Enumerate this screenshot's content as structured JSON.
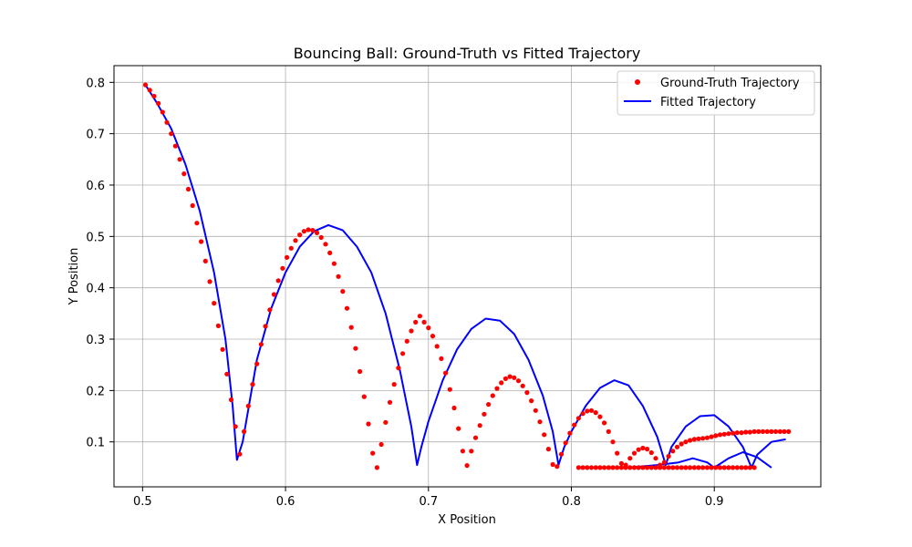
{
  "chart_data": {
    "type": "scatter",
    "title": "Bouncing Ball: Ground-Truth vs Fitted Trajectory",
    "xlabel": "X Position",
    "ylabel": "Y Position",
    "xlim": [
      0.48,
      0.9745
    ],
    "ylim": [
      0.0125,
      0.8325
    ],
    "xticks": [
      0.5,
      0.6,
      0.7,
      0.8,
      0.9
    ],
    "yticks": [
      0.1,
      0.2,
      0.3,
      0.4,
      0.5,
      0.6,
      0.7,
      0.8
    ],
    "xtick_labels": [
      "0.5",
      "0.6",
      "0.7",
      "0.8",
      "0.9"
    ],
    "ytick_labels": [
      "0.1",
      "0.2",
      "0.3",
      "0.4",
      "0.5",
      "0.6",
      "0.7",
      "0.8"
    ],
    "grid": true,
    "legend_position": "top-right",
    "series": [
      {
        "name": "Ground-Truth Trajectory",
        "kind": "scatter",
        "color": "#ff0000",
        "x": [
          0.502,
          0.505,
          0.508,
          0.511,
          0.514,
          0.517,
          0.52,
          0.523,
          0.526,
          0.529,
          0.532,
          0.535,
          0.538,
          0.541,
          0.544,
          0.547,
          0.55,
          0.553,
          0.556,
          0.559,
          0.562,
          0.565,
          0.568,
          0.571,
          0.574,
          0.577,
          0.58,
          0.583,
          0.586,
          0.589,
          0.592,
          0.595,
          0.598,
          0.601,
          0.604,
          0.607,
          0.61,
          0.613,
          0.616,
          0.619,
          0.622,
          0.625,
          0.628,
          0.631,
          0.634,
          0.637,
          0.64,
          0.643,
          0.646,
          0.649,
          0.652,
          0.655,
          0.658,
          0.661,
          0.664,
          0.667,
          0.67,
          0.673,
          0.676,
          0.679,
          0.682,
          0.685,
          0.688,
          0.691,
          0.694,
          0.697,
          0.7,
          0.703,
          0.706,
          0.709,
          0.712,
          0.715,
          0.718,
          0.721,
          0.724,
          0.727,
          0.73,
          0.733,
          0.736,
          0.739,
          0.742,
          0.745,
          0.748,
          0.751,
          0.754,
          0.757,
          0.76,
          0.763,
          0.766,
          0.769,
          0.772,
          0.775,
          0.778,
          0.781,
          0.784,
          0.787,
          0.79,
          0.793,
          0.796,
          0.799,
          0.802,
          0.805,
          0.808,
          0.811,
          0.814,
          0.817,
          0.82,
          0.823,
          0.826,
          0.829,
          0.832,
          0.835,
          0.838,
          0.841,
          0.844,
          0.847,
          0.85,
          0.853,
          0.856,
          0.859,
          0.862,
          0.865,
          0.868,
          0.871,
          0.874,
          0.877,
          0.88,
          0.883,
          0.886,
          0.889,
          0.892,
          0.895,
          0.898,
          0.901,
          0.904,
          0.907,
          0.91,
          0.913,
          0.916,
          0.919,
          0.922,
          0.925,
          0.928,
          0.931,
          0.934,
          0.937,
          0.94,
          0.943,
          0.946,
          0.949,
          0.952,
          0.805,
          0.808,
          0.811,
          0.814,
          0.817,
          0.82,
          0.823,
          0.826,
          0.829,
          0.832,
          0.835,
          0.838,
          0.841,
          0.844,
          0.847,
          0.85,
          0.853,
          0.856,
          0.859,
          0.862,
          0.865,
          0.868,
          0.871,
          0.874,
          0.877,
          0.88,
          0.883,
          0.886,
          0.889,
          0.892,
          0.895,
          0.898,
          0.901,
          0.904,
          0.907,
          0.91,
          0.913,
          0.916,
          0.919,
          0.922,
          0.925,
          0.928
        ],
        "y": [
          0.795,
          0.785,
          0.773,
          0.759,
          0.742,
          0.722,
          0.7,
          0.676,
          0.65,
          0.622,
          0.592,
          0.56,
          0.526,
          0.49,
          0.452,
          0.412,
          0.37,
          0.326,
          0.28,
          0.232,
          0.182,
          0.13,
          0.076,
          0.12,
          0.17,
          0.212,
          0.252,
          0.29,
          0.325,
          0.357,
          0.387,
          0.414,
          0.438,
          0.459,
          0.477,
          0.492,
          0.503,
          0.51,
          0.513,
          0.512,
          0.507,
          0.498,
          0.485,
          0.468,
          0.447,
          0.422,
          0.393,
          0.36,
          0.323,
          0.282,
          0.237,
          0.188,
          0.135,
          0.078,
          0.05,
          0.095,
          0.138,
          0.177,
          0.212,
          0.244,
          0.272,
          0.296,
          0.316,
          0.333,
          0.345,
          0.333,
          0.322,
          0.306,
          0.286,
          0.262,
          0.234,
          0.202,
          0.166,
          0.126,
          0.082,
          0.054,
          0.082,
          0.108,
          0.132,
          0.154,
          0.173,
          0.19,
          0.204,
          0.215,
          0.223,
          0.227,
          0.225,
          0.219,
          0.209,
          0.196,
          0.18,
          0.161,
          0.139,
          0.114,
          0.086,
          0.056,
          0.052,
          0.076,
          0.098,
          0.117,
          0.133,
          0.146,
          0.155,
          0.16,
          0.161,
          0.157,
          0.149,
          0.137,
          0.12,
          0.1,
          0.078,
          0.058,
          0.055,
          0.068,
          0.078,
          0.085,
          0.088,
          0.086,
          0.079,
          0.068,
          0.055,
          0.06,
          0.072,
          0.082,
          0.09,
          0.096,
          0.1,
          0.103,
          0.105,
          0.106,
          0.107,
          0.108,
          0.11,
          0.112,
          0.114,
          0.115,
          0.116,
          0.117,
          0.118,
          0.118,
          0.119,
          0.119,
          0.12,
          0.12,
          0.12,
          0.12,
          0.12,
          0.12,
          0.12,
          0.12,
          0.12,
          0.05,
          0.05,
          0.05,
          0.05,
          0.05,
          0.05,
          0.05,
          0.05,
          0.05,
          0.05,
          0.05,
          0.05,
          0.05,
          0.05,
          0.05,
          0.05,
          0.05,
          0.05,
          0.05,
          0.05,
          0.05,
          0.05,
          0.05,
          0.05,
          0.05,
          0.05,
          0.05,
          0.05,
          0.05,
          0.05,
          0.05,
          0.05,
          0.05,
          0.05,
          0.05,
          0.05,
          0.05,
          0.05,
          0.05,
          0.05,
          0.05,
          0.05
        ]
      },
      {
        "name": "Fitted Trajectory",
        "kind": "line",
        "color": "#0000ff",
        "segments": [
          {
            "x": [
              0.502,
              0.51,
              0.52,
              0.53,
              0.54,
              0.55,
              0.558,
              0.563,
              0.566,
              0.57,
              0.575,
              0.58,
              0.59,
              0.6,
              0.61,
              0.62,
              0.63,
              0.64,
              0.65,
              0.66,
              0.67,
              0.68,
              0.688,
              0.692,
              0.695,
              0.7,
              0.71,
              0.72,
              0.73,
              0.74,
              0.75,
              0.76,
              0.77,
              0.78,
              0.787,
              0.791,
              0.795,
              0.8,
              0.81,
              0.82,
              0.83,
              0.84,
              0.85,
              0.86,
              0.866,
              0.87,
              0.88,
              0.89,
              0.9,
              0.91,
              0.92,
              0.926,
              0.93,
              0.94,
              0.95
            ],
            "y": [
              0.795,
              0.76,
              0.71,
              0.64,
              0.55,
              0.43,
              0.3,
              0.17,
              0.065,
              0.1,
              0.18,
              0.26,
              0.36,
              0.43,
              0.48,
              0.51,
              0.522,
              0.512,
              0.48,
              0.43,
              0.35,
              0.24,
              0.13,
              0.055,
              0.09,
              0.14,
              0.22,
              0.28,
              0.32,
              0.34,
              0.336,
              0.31,
              0.26,
              0.19,
              0.12,
              0.055,
              0.09,
              0.12,
              0.17,
              0.205,
              0.22,
              0.21,
              0.17,
              0.11,
              0.055,
              0.09,
              0.13,
              0.15,
              0.152,
              0.13,
              0.09,
              0.05,
              0.075,
              0.1,
              0.105
            ]
          },
          {
            "x": [
              0.805,
              0.84,
              0.86,
              0.875,
              0.885,
              0.895,
              0.9,
              0.91,
              0.92,
              0.93,
              0.94
            ],
            "y": [
              0.05,
              0.05,
              0.055,
              0.06,
              0.068,
              0.06,
              0.05,
              0.068,
              0.08,
              0.07,
              0.05
            ]
          }
        ]
      }
    ]
  }
}
